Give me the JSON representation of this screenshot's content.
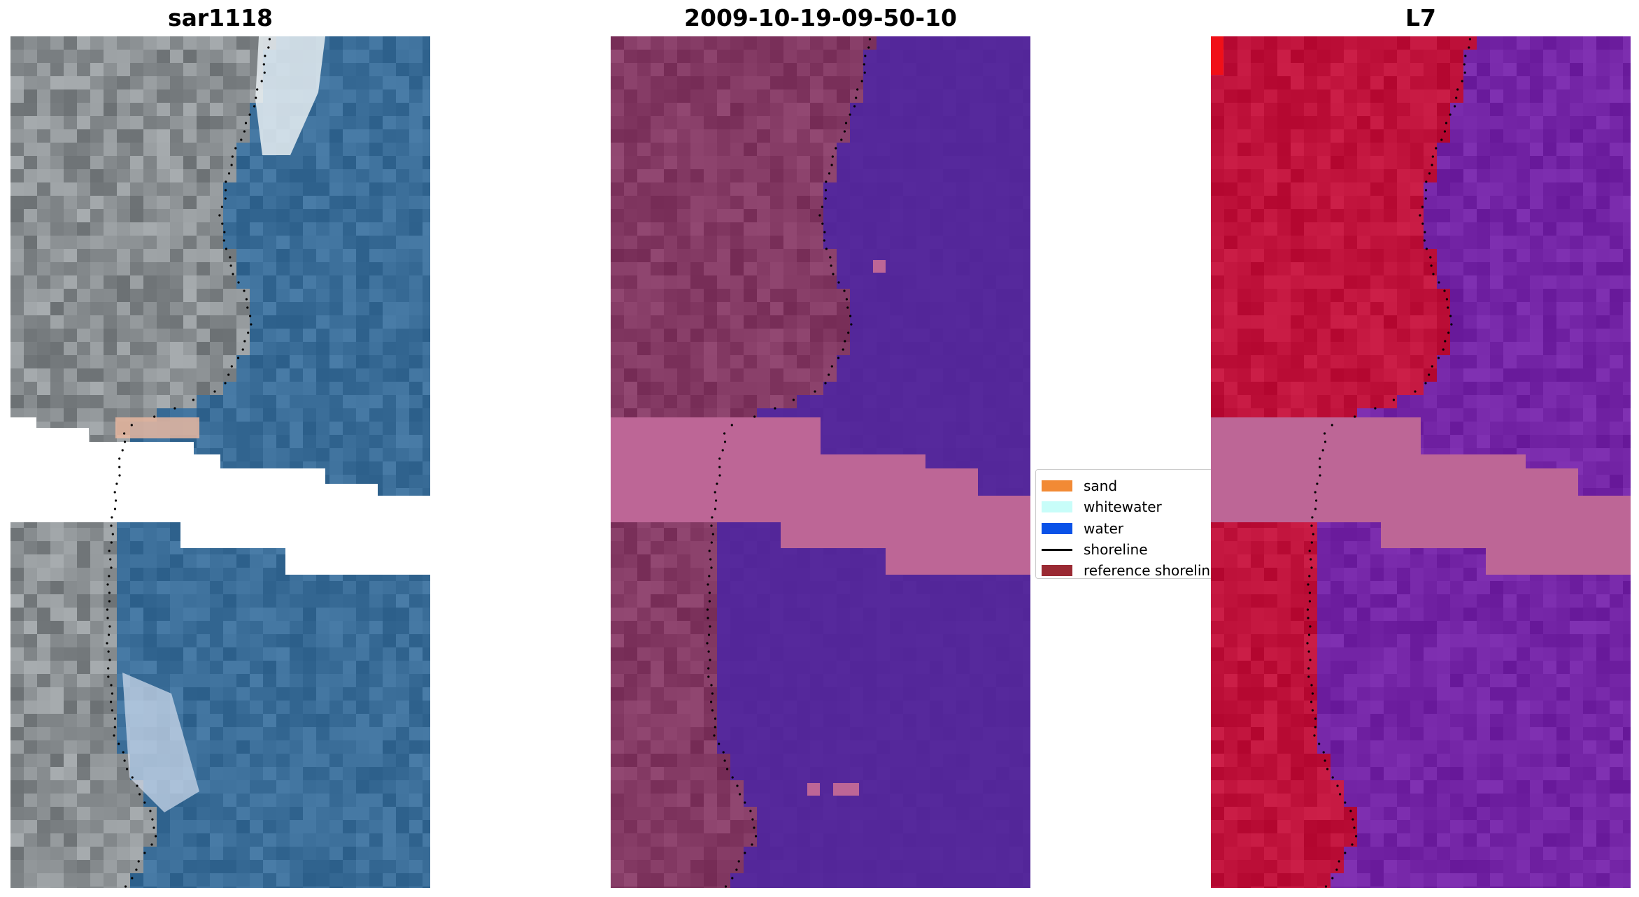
{
  "panels": [
    {
      "title": "sar1118",
      "style": "rgb"
    },
    {
      "title": "2009-10-19-09-50-10",
      "style": "classified"
    },
    {
      "title": "L7",
      "style": "false-color"
    }
  ],
  "legend": {
    "items": [
      {
        "label": "sand",
        "color": "#f28a35",
        "kind": "patch"
      },
      {
        "label": "whitewater",
        "color": "#c8fdf9",
        "kind": "patch"
      },
      {
        "label": "water",
        "color": "#0a52e8",
        "kind": "patch"
      },
      {
        "label": "shoreline",
        "color": "#000000",
        "kind": "line"
      },
      {
        "label": "reference shoreline",
        "color": "#9a2a33",
        "kind": "patch"
      }
    ]
  },
  "colors": {
    "sar_land": "#8a8f92",
    "sar_water": "#3b6e99",
    "class_land": "#843a64",
    "class_water": "#55289b",
    "class_nodata": "#bd6696",
    "l7_land": "#c0133c",
    "l7_water": "#7425a6",
    "nodata": "#ffffff"
  }
}
